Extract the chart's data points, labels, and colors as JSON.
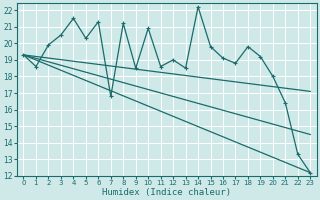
{
  "xlabel": "Humidex (Indice chaleur)",
  "bg_color": "#cfe9e9",
  "grid_color": "#ffffff",
  "line_color": "#1a6b6b",
  "xlim": [
    -0.5,
    23.5
  ],
  "ylim": [
    12,
    22.4
  ],
  "xticks": [
    0,
    1,
    2,
    3,
    4,
    5,
    6,
    7,
    8,
    9,
    10,
    11,
    12,
    13,
    14,
    15,
    16,
    17,
    18,
    19,
    20,
    21,
    22,
    23
  ],
  "yticks": [
    12,
    13,
    14,
    15,
    16,
    17,
    18,
    19,
    20,
    21,
    22
  ],
  "series1_x": [
    0,
    1,
    2,
    3,
    4,
    5,
    6,
    7,
    8,
    9,
    10,
    11,
    12,
    13,
    14,
    15,
    16,
    17,
    18,
    19,
    20,
    21,
    22,
    23
  ],
  "series1_y": [
    19.3,
    18.6,
    19.9,
    20.5,
    21.5,
    20.3,
    21.3,
    16.8,
    21.2,
    18.5,
    20.9,
    18.6,
    19.0,
    18.5,
    22.2,
    19.8,
    19.1,
    18.8,
    19.8,
    19.2,
    18.0,
    16.4,
    13.3,
    12.2
  ],
  "line1_x": [
    0,
    23
  ],
  "line1_y": [
    19.3,
    12.2
  ],
  "line2_x": [
    0,
    23
  ],
  "line2_y": [
    19.3,
    17.1
  ],
  "line3_x": [
    0,
    23
  ],
  "line3_y": [
    19.3,
    14.5
  ]
}
